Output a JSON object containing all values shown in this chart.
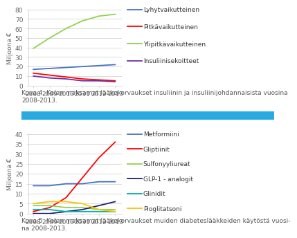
{
  "years": [
    2008,
    2009,
    2010,
    2011,
    2012,
    2013
  ],
  "chart4": {
    "ylabel": "Miljoona €",
    "ylim": [
      0,
      80
    ],
    "yticks": [
      0,
      10,
      20,
      30,
      40,
      50,
      60,
      70,
      80
    ],
    "caption": "Kuva 4. Kelan maksamat lääkekorvaukset insuliinin ja insuliinijohdannaisista vuosina\n2008-2013.",
    "series": [
      {
        "label": "Lyhytvaikutteinen",
        "color": "#4472C4",
        "values": [
          17,
          18,
          19,
          20,
          21,
          22
        ]
      },
      {
        "label": "Pitkävaikutteinen",
        "color": "#FF0000",
        "values": [
          13,
          11,
          9,
          7,
          6,
          5
        ]
      },
      {
        "label": "Ylipitkävaikutteinen",
        "color": "#92D050",
        "values": [
          39,
          50,
          60,
          68,
          73,
          75
        ]
      },
      {
        "label": "Insuliinisekoitteet",
        "color": "#7030A0",
        "values": [
          10,
          8,
          7,
          5,
          5,
          4
        ]
      }
    ]
  },
  "chart5": {
    "ylabel": "Miljoona €",
    "ylim": [
      0,
      40
    ],
    "yticks": [
      0,
      5,
      10,
      15,
      20,
      25,
      30,
      35,
      40
    ],
    "caption": "Kuva 5. Kelan maksamat lääkekorvaukset muiden diabeteslääkkeiden käytöstä vuosi-\nna 2008-2013.",
    "series": [
      {
        "label": "Metformiini",
        "color": "#4472C4",
        "values": [
          14,
          14,
          15,
          15,
          16,
          16
        ]
      },
      {
        "label": "Gliptiinit",
        "color": "#FF0000",
        "values": [
          1,
          3,
          8,
          18,
          28,
          36
        ]
      },
      {
        "label": "Sulfonyyliureat",
        "color": "#92D050",
        "values": [
          4,
          4,
          3,
          3,
          2,
          2
        ]
      },
      {
        "label": "GLP-1 - analogit",
        "color": "#1F1F6E",
        "values": [
          0,
          0,
          1,
          2,
          4,
          6
        ]
      },
      {
        "label": "Glinidit",
        "color": "#00B0B0",
        "values": [
          2,
          2,
          1,
          1,
          1,
          1
        ]
      },
      {
        "label": "Pioglitatsoni",
        "color": "#FFC000",
        "values": [
          5,
          6,
          6,
          5,
          2,
          1
        ]
      }
    ]
  },
  "bg_color": "#FFFFFF",
  "grid_color": "#CCCCCC",
  "tick_color": "#666666",
  "caption_color": "#555555",
  "sep_bar_color": "#29ABE2",
  "caption_fontsize": 6.5,
  "axis_label_fontsize": 6.5,
  "legend_fontsize": 6.5,
  "tick_fontsize": 6.5,
  "linewidth": 1.3
}
